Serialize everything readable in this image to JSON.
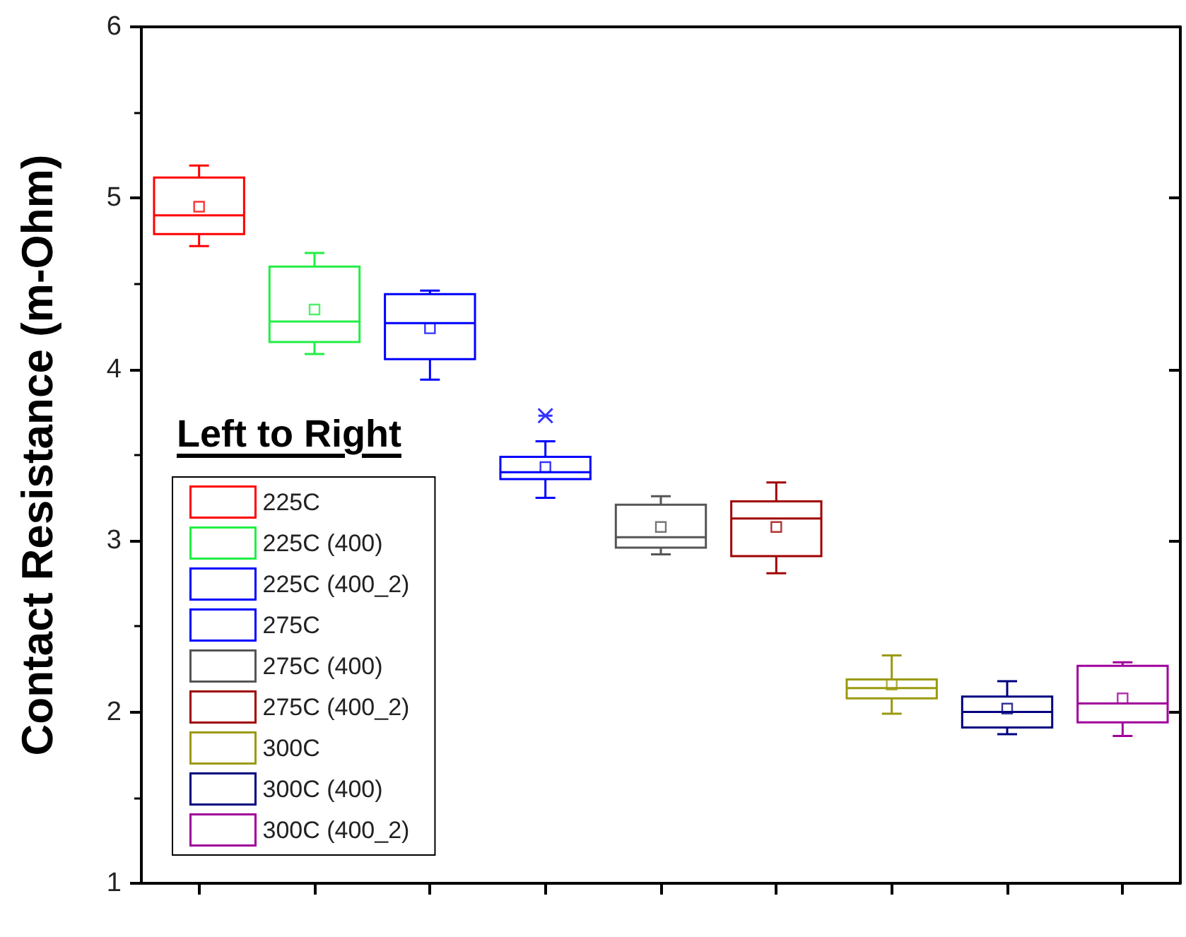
{
  "chart_data": {
    "type": "box",
    "ylabel": "Contact Resistance (m-Ohm)",
    "legend_title": "Left to Right",
    "legend": "bottom left",
    "tick_labels": "y",
    "categories": [
      null,
      null,
      null,
      null,
      null,
      null,
      null,
      null,
      null
    ],
    "ylim": [
      1,
      6
    ],
    "yticks": [
      1,
      2,
      3,
      4,
      5,
      6
    ],
    "series": [
      {
        "name": "225C",
        "color": "#ff0000",
        "boxes": [
          {
            "low": 4.72,
            "q1": 4.79,
            "median": 4.9,
            "q3": 5.12,
            "high": 5.19,
            "mean": 4.95
          },
          null,
          null,
          null,
          null,
          null,
          null,
          null,
          null
        ]
      },
      {
        "name": "225C (400)",
        "color": "#22ee44",
        "boxes": [
          null,
          {
            "low": 4.09,
            "q1": 4.16,
            "median": 4.28,
            "q3": 4.6,
            "high": 4.68,
            "mean": 4.35
          },
          null,
          null,
          null,
          null,
          null,
          null,
          null
        ]
      },
      {
        "name": "225C (400_2)",
        "color": "#0000ff",
        "boxes": [
          null,
          null,
          {
            "low": 3.94,
            "q1": 4.06,
            "median": 4.27,
            "q3": 4.44,
            "high": 4.46,
            "mean": 4.24
          },
          null,
          null,
          null,
          null,
          null,
          null
        ]
      },
      {
        "name": "275C",
        "color": "#0000ff",
        "boxes": [
          null,
          null,
          null,
          {
            "low": 3.25,
            "q1": 3.36,
            "median": 3.4,
            "q3": 3.49,
            "high": 3.58,
            "mean": 3.43,
            "outliers": [
              3.73
            ]
          },
          null,
          null,
          null,
          null,
          null
        ]
      },
      {
        "name": "275C (400)",
        "color": "#555555",
        "boxes": [
          null,
          null,
          null,
          null,
          {
            "low": 2.92,
            "q1": 2.96,
            "median": 3.02,
            "q3": 3.21,
            "high": 3.26,
            "mean": 3.08
          },
          null,
          null,
          null,
          null
        ]
      },
      {
        "name": "275C (400_2)",
        "color": "#a00000",
        "boxes": [
          null,
          null,
          null,
          null,
          null,
          {
            "low": 2.81,
            "q1": 2.91,
            "median": 3.13,
            "q3": 3.23,
            "high": 3.34,
            "mean": 3.08
          },
          null,
          null,
          null
        ]
      },
      {
        "name": "300C",
        "color": "#9a9a10",
        "boxes": [
          null,
          null,
          null,
          null,
          null,
          null,
          {
            "low": 1.99,
            "q1": 2.08,
            "median": 2.14,
            "q3": 2.19,
            "high": 2.33,
            "mean": 2.16
          },
          null,
          null
        ]
      },
      {
        "name": "300C (400)",
        "color": "#000080",
        "boxes": [
          null,
          null,
          null,
          null,
          null,
          null,
          null,
          {
            "low": 1.87,
            "q1": 1.91,
            "median": 2.0,
            "q3": 2.09,
            "high": 2.18,
            "mean": 2.02
          },
          null
        ]
      },
      {
        "name": "300C (400_2)",
        "color": "#a0009a",
        "boxes": [
          null,
          null,
          null,
          null,
          null,
          null,
          null,
          null,
          {
            "low": 1.86,
            "q1": 1.94,
            "median": 2.05,
            "q3": 2.27,
            "high": 2.29,
            "mean": 2.08
          }
        ]
      }
    ]
  }
}
